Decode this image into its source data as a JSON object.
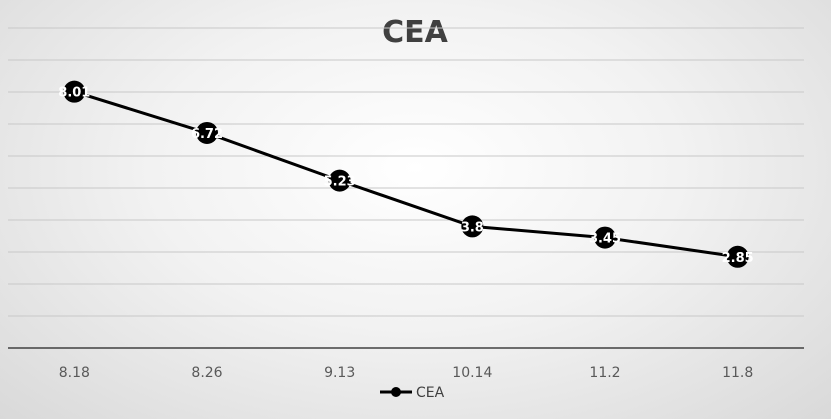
{
  "chart_data": {
    "type": "line",
    "title": "CEA",
    "categories": [
      "8.18",
      "8.26",
      "9.13",
      "10.14",
      "11.2",
      "11.8"
    ],
    "series": [
      {
        "name": "CEA",
        "values": [
          8.01,
          6.72,
          5.23,
          3.8,
          3.45,
          2.85
        ],
        "color": "#000000"
      }
    ],
    "ylim": [
      0,
      10
    ],
    "y_gridlines": true,
    "y_tick_labels_visible": false,
    "data_labels": true,
    "legend": "bottom",
    "xlabel": "",
    "ylabel": ""
  }
}
